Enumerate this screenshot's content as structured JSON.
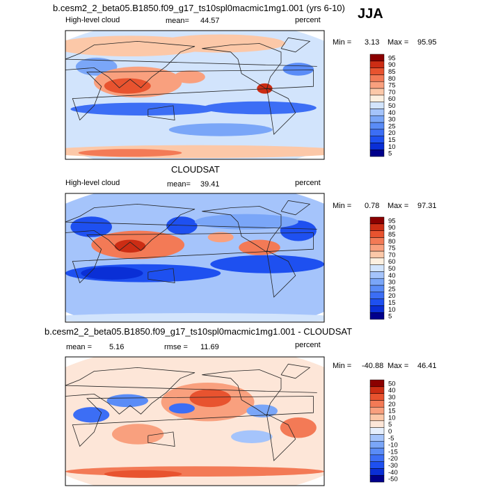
{
  "season": "JJA",
  "chart_data": [
    {
      "type": "heatmap",
      "title": "b.cesm2_2_beta05.B1850.f09_g17_ts10spl0macmic1mg1.001 (yrs 6-10)",
      "left_label": "High-level cloud",
      "mean_label": "mean=",
      "mean_value": "44.57",
      "units": "percent",
      "min_label": "Min =",
      "min_value": "3.13",
      "max_label": "Max =",
      "max_value": "95.95",
      "levels": [
        "5",
        "10",
        "15",
        "20",
        "25",
        "30",
        "40",
        "50",
        "60",
        "70",
        "75",
        "80",
        "85",
        "90",
        "95"
      ],
      "colors": [
        "#00008b",
        "#0a2fd6",
        "#1e50f0",
        "#3c6ef5",
        "#5a8cf7",
        "#7aa6f8",
        "#a5c4fb",
        "#d2e4fc",
        "#fdf0e0",
        "#fcc8a8",
        "#f9a07e",
        "#f37a56",
        "#e8532f",
        "#cc2d14",
        "#8b0000"
      ]
    },
    {
      "type": "heatmap",
      "title": "CLOUDSAT",
      "left_label": "High-level cloud",
      "mean_label": "mean=",
      "mean_value": "39.41",
      "units": "percent",
      "min_label": "Min =",
      "min_value": "0.78",
      "max_label": "Max =",
      "max_value": "97.31",
      "levels": [
        "5",
        "10",
        "15",
        "20",
        "25",
        "30",
        "40",
        "50",
        "60",
        "70",
        "75",
        "80",
        "85",
        "90",
        "95"
      ],
      "colors": [
        "#00008b",
        "#0a2fd6",
        "#1e50f0",
        "#3c6ef5",
        "#5a8cf7",
        "#7aa6f8",
        "#a5c4fb",
        "#d2e4fc",
        "#fdf0e0",
        "#fcc8a8",
        "#f9a07e",
        "#f37a56",
        "#e8532f",
        "#cc2d14",
        "#8b0000"
      ]
    },
    {
      "type": "heatmap",
      "title": "b.cesm2_2_beta05.B1850.f09_g17_ts10spl0macmic1mg1.001 - CLOUDSAT",
      "mean_label": "mean =",
      "mean_value": "5.16",
      "rmse_label": "rmse =",
      "rmse_value": "11.69",
      "units": "percent",
      "min_label": "Min =",
      "min_value": "-40.88",
      "max_label": "Max =",
      "max_value": "46.41",
      "levels": [
        "-50",
        "-40",
        "-30",
        "-20",
        "-15",
        "-10",
        "-5",
        "0",
        "5",
        "10",
        "15",
        "20",
        "30",
        "40",
        "50"
      ],
      "colors": [
        "#00008b",
        "#0a2fd6",
        "#1e50f0",
        "#3c6ef5",
        "#5a8cf7",
        "#7aa6f8",
        "#a5c4fb",
        "#e6effd",
        "#fde6d8",
        "#fcc8a8",
        "#f9a07e",
        "#f37a56",
        "#e8532f",
        "#cc2d14",
        "#8b0000"
      ]
    }
  ]
}
